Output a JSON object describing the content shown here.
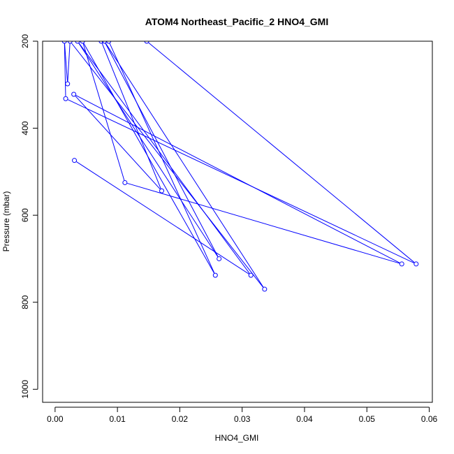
{
  "chart_data": {
    "type": "line",
    "title": "ATOM4 Northeast_Pacific_2 HNO4_GMI",
    "xlabel": "HNO4_GMI",
    "ylabel": "Pressure (mbar)",
    "xlim": [
      -0.002,
      0.0605
    ],
    "ylim": [
      1030,
      200
    ],
    "y_reversed": true,
    "x_ticks": [
      0.0,
      0.01,
      0.02,
      0.03,
      0.04,
      0.05,
      0.06
    ],
    "x_tick_labels": [
      "0.00",
      "0.01",
      "0.02",
      "0.03",
      "0.04",
      "0.05",
      "0.06"
    ],
    "y_ticks": [
      200,
      400,
      600,
      800,
      1000
    ],
    "y_tick_labels": [
      "200",
      "400",
      "600",
      "800",
      "1000"
    ],
    "grid": false,
    "line_color": "#0000ff",
    "series": [
      {
        "points": [
          {
            "x": 0.0031,
            "y": 474
          },
          {
            "x": 0.0314,
            "y": 738
          },
          {
            "x": 0.0036,
            "y": 200
          },
          {
            "x": 0.0263,
            "y": 700
          },
          {
            "x": 0.0079,
            "y": 200
          },
          {
            "x": 0.0336,
            "y": 770
          },
          {
            "x": 0.0024,
            "y": 200
          },
          {
            "x": 0.002,
            "y": 298
          },
          {
            "x": 0.0015,
            "y": 200
          },
          {
            "x": 0.0017,
            "y": 332
          },
          {
            "x": 0.0579,
            "y": 712
          },
          {
            "x": 0.0147,
            "y": 200
          },
          {
            "x": 0.0086,
            "y": 200
          },
          {
            "x": 0.0257,
            "y": 738
          },
          {
            "x": 0.0044,
            "y": 200
          },
          {
            "x": 0.0112,
            "y": 525
          },
          {
            "x": 0.0556,
            "y": 712
          },
          {
            "x": 0.003,
            "y": 322
          },
          {
            "x": 0.0171,
            "y": 544
          },
          {
            "x": 0.0074,
            "y": 200
          }
        ]
      }
    ]
  }
}
